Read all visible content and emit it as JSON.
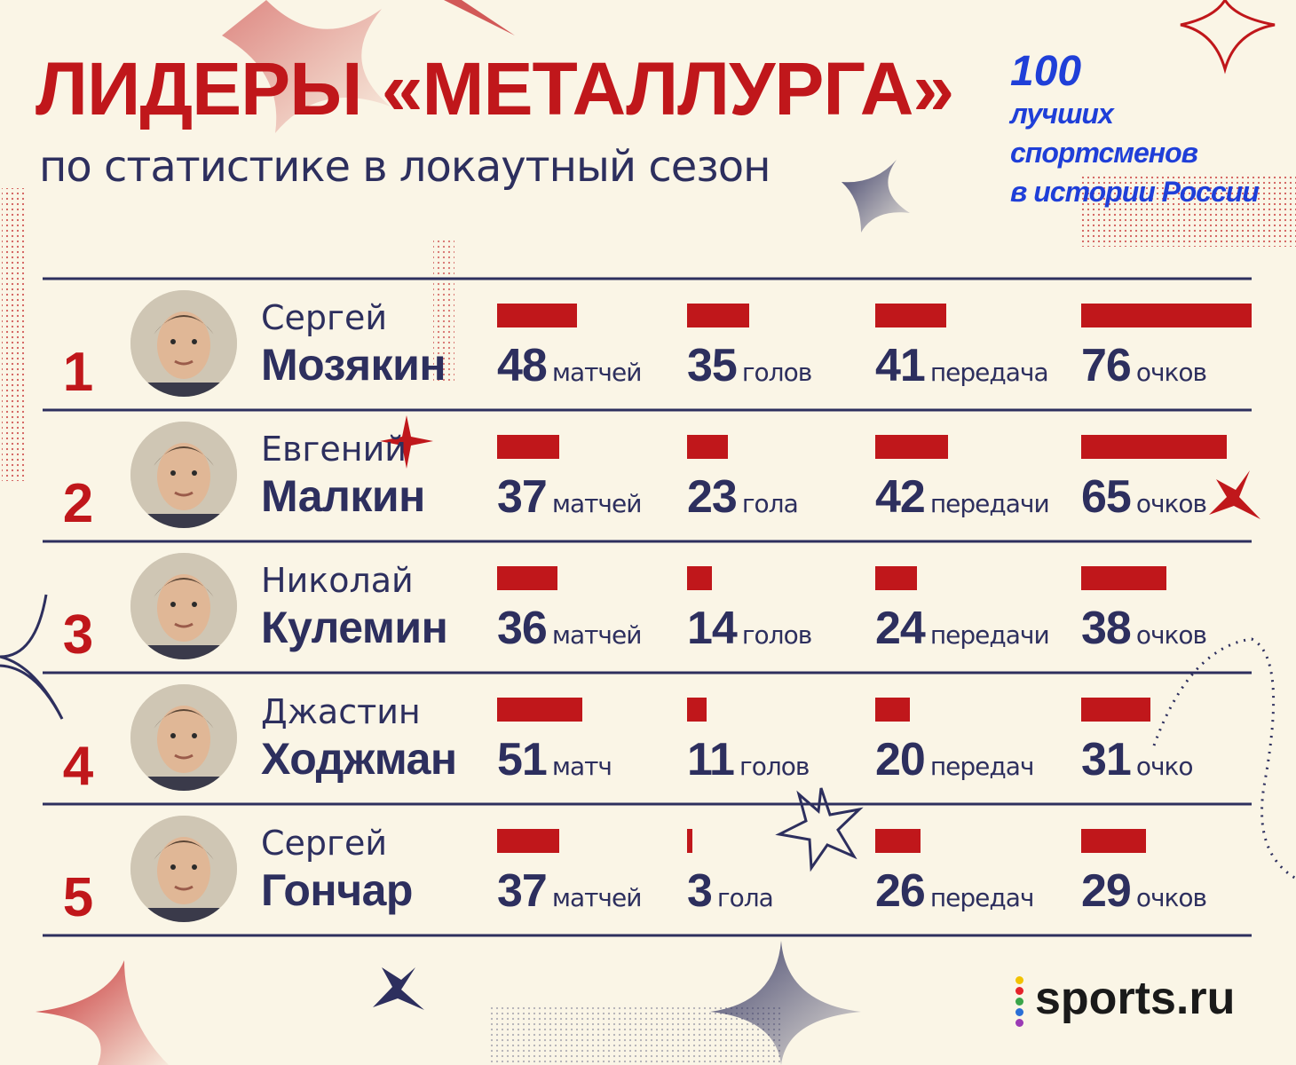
{
  "header": {
    "title": "ЛИДЕРЫ «МЕТАЛЛУРГА»",
    "subtitle": "по статистике в локаутный сезон"
  },
  "badge": {
    "number": "100",
    "line1": "лучших спортсменов",
    "line2": "в истории России"
  },
  "logo": {
    "text": "sports.ru"
  },
  "colors": {
    "background": "#faf5e6",
    "accent_red": "#c0171b",
    "navy": "#2d2f5e",
    "badge_blue": "#1f3fd8"
  },
  "chart_data": {
    "type": "bar",
    "categories": [
      "1",
      "2",
      "3",
      "4",
      "5"
    ],
    "series": [
      {
        "values": [
          48,
          37,
          36,
          51,
          37
        ]
      },
      {
        "values": [
          35,
          23,
          14,
          11,
          3
        ]
      },
      {
        "values": [
          41,
          42,
          24,
          20,
          26
        ]
      },
      {
        "values": [
          76,
          65,
          38,
          31,
          29
        ]
      }
    ],
    "players": [
      {
        "rank": "1",
        "first": "Сергей",
        "last": "Мозякин",
        "stats": [
          {
            "value": "48",
            "unit": "матчей"
          },
          {
            "value": "35",
            "unit": "голов"
          },
          {
            "value": "41",
            "unit": "передача"
          },
          {
            "value": "76",
            "unit": "очков"
          }
        ]
      },
      {
        "rank": "2",
        "first": "Евгений",
        "last": "Малкин",
        "stats": [
          {
            "value": "37",
            "unit": "матчей"
          },
          {
            "value": "23",
            "unit": "гола"
          },
          {
            "value": "42",
            "unit": "передачи"
          },
          {
            "value": "65",
            "unit": "очков"
          }
        ]
      },
      {
        "rank": "3",
        "first": "Николай",
        "last": "Кулемин",
        "stats": [
          {
            "value": "36",
            "unit": "матчей"
          },
          {
            "value": "14",
            "unit": "голов"
          },
          {
            "value": "24",
            "unit": "передачи"
          },
          {
            "value": "38",
            "unit": "очков"
          }
        ]
      },
      {
        "rank": "4",
        "first": "Джастин",
        "last": "Ходжман",
        "stats": [
          {
            "value": "51",
            "unit": "матч"
          },
          {
            "value": "11",
            "unit": "голов"
          },
          {
            "value": "20",
            "unit": "передач"
          },
          {
            "value": "31",
            "unit": "очко"
          }
        ]
      },
      {
        "rank": "5",
        "first": "Сергей",
        "last": "Гончар",
        "stats": [
          {
            "value": "37",
            "unit": "матчей"
          },
          {
            "value": "3",
            "unit": "гола"
          },
          {
            "value": "26",
            "unit": "передач"
          },
          {
            "value": "29",
            "unit": "очков"
          }
        ]
      }
    ]
  }
}
